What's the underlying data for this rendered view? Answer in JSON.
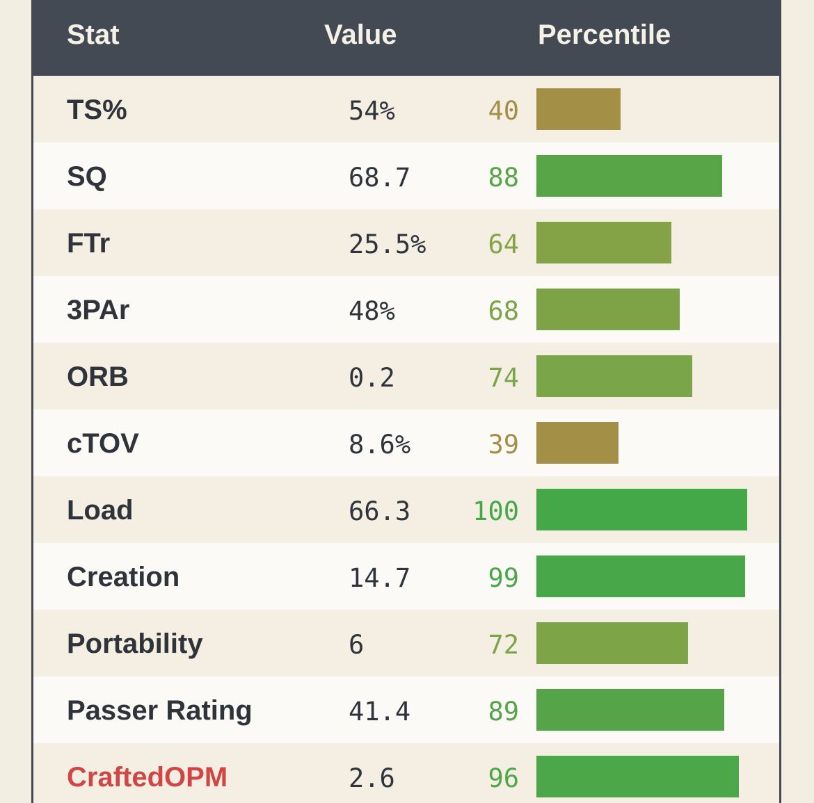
{
  "header": {
    "stat": "Stat",
    "value": "Value",
    "percentile": "Percentile"
  },
  "colors": {
    "header_bg": "#434a54",
    "highlight_text": "#d04545",
    "low": "#a38f46",
    "mid": "#84a347",
    "high": "#4aa748"
  },
  "rows": [
    {
      "stat": "TS%",
      "value": "54%",
      "percentile": "40",
      "percentile_num": 40,
      "color": "#a38f46"
    },
    {
      "stat": "SQ",
      "value": "68.7",
      "percentile": "88",
      "percentile_num": 88,
      "color": "#58a548"
    },
    {
      "stat": "FTr",
      "value": "25.5%",
      "percentile": "64",
      "percentile_num": 64,
      "color": "#84a347"
    },
    {
      "stat": "3PAr",
      "value": "48%",
      "percentile": "68",
      "percentile_num": 68,
      "color": "#7ea347"
    },
    {
      "stat": "ORB",
      "value": "0.2",
      "percentile": "74",
      "percentile_num": 74,
      "color": "#7aa548"
    },
    {
      "stat": "cTOV",
      "value": "8.6%",
      "percentile": "39",
      "percentile_num": 39,
      "color": "#a38f46"
    },
    {
      "stat": "Load",
      "value": "66.3",
      "percentile": "100",
      "percentile_num": 100,
      "color": "#44a748"
    },
    {
      "stat": "Creation",
      "value": "14.7",
      "percentile": "99",
      "percentile_num": 99,
      "color": "#48a748"
    },
    {
      "stat": "Portability",
      "value": "6",
      "percentile": "72",
      "percentile_num": 72,
      "color": "#7da447"
    },
    {
      "stat": "Passer Rating",
      "value": "41.4",
      "percentile": "89",
      "percentile_num": 89,
      "color": "#55a548"
    },
    {
      "stat": "CraftedOPM",
      "value": "2.6",
      "percentile": "96",
      "percentile_num": 96,
      "color": "#4ca748",
      "highlight": true
    }
  ]
}
